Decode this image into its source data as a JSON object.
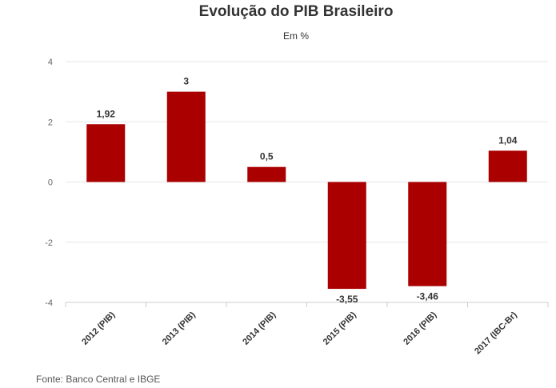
{
  "chart_data": {
    "type": "bar",
    "title": "Evolução do PIB Brasileiro",
    "subtitle": "Em %",
    "categories": [
      "2012 (PIB)",
      "2013 (PIB)",
      "2014 (PIB)",
      "2015 (PIB)",
      "2016 (PIB)",
      "2017 (IBC-Br)"
    ],
    "values": [
      1.92,
      3,
      0.5,
      -3.55,
      -3.46,
      1.04
    ],
    "value_labels": [
      "1,92",
      "3",
      "0,5",
      "-3,55",
      "-3,46",
      "1,04"
    ],
    "yticks": [
      4,
      2,
      0,
      -2,
      -4
    ],
    "ylim": [
      -4,
      4
    ],
    "xlabel": "",
    "ylabel": "",
    "grid": true,
    "legend": "none",
    "bar_color": "#aa0000"
  },
  "source": "Fonte: Banco Central e IBGE"
}
